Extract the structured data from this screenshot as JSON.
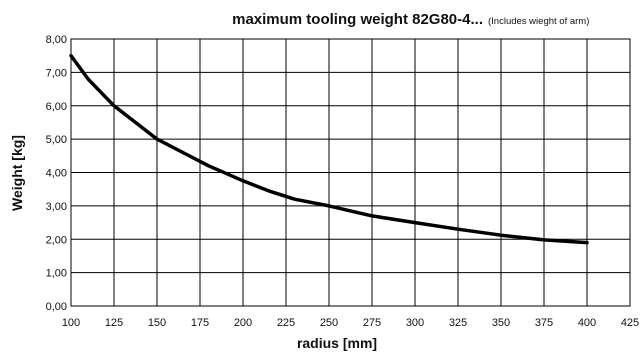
{
  "chart_data": {
    "type": "line",
    "title": "maximum tooling weight 82G80-4...",
    "subtitle": "(Includes wieght of arm)",
    "xlabel": "radius [mm]",
    "ylabel": "Weight [kg]",
    "xlim": [
      100,
      425
    ],
    "ylim": [
      0,
      8
    ],
    "x_ticks": [
      100,
      125,
      150,
      175,
      200,
      225,
      250,
      275,
      300,
      325,
      350,
      375,
      400,
      425
    ],
    "y_ticks": [
      0,
      1,
      2,
      3,
      4,
      5,
      6,
      7,
      8
    ],
    "y_tick_labels": [
      "0,00",
      "1,00",
      "2,00",
      "3,00",
      "4,00",
      "5,00",
      "6,00",
      "7,00",
      "8,00"
    ],
    "grid": true,
    "line_color": "#000000",
    "series": [
      {
        "x": [
          100,
          110,
          125,
          135,
          150,
          165,
          180,
          200,
          215,
          230,
          250,
          275,
          300,
          325,
          350,
          375,
          400
        ],
        "y": [
          7.5,
          6.8,
          6.0,
          5.6,
          5.0,
          4.6,
          4.2,
          3.75,
          3.45,
          3.2,
          3.0,
          2.7,
          2.5,
          2.3,
          2.12,
          1.98,
          1.9
        ]
      }
    ]
  }
}
